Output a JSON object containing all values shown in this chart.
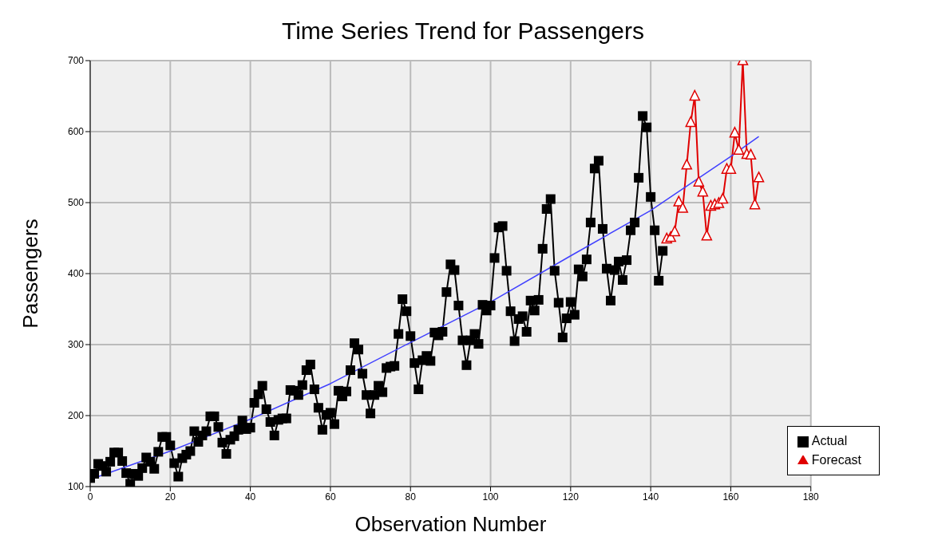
{
  "chart_data": {
    "type": "line",
    "title": "Time Series Trend for Passengers",
    "xlabel": "Observation Number",
    "ylabel": "Passengers",
    "xlim": [
      0,
      180
    ],
    "xticks": [
      0,
      20,
      40,
      60,
      80,
      100,
      120,
      140,
      160,
      180
    ],
    "ylim": [
      100,
      700
    ],
    "yticks": [
      100,
      200,
      300,
      400,
      500,
      600,
      700
    ],
    "grid": true,
    "legend": "bottom right",
    "series": [
      {
        "name": "Actual",
        "color": "#000000",
        "marker": "square",
        "x": [
          0,
          1,
          2,
          3,
          4,
          5,
          6,
          7,
          8,
          9,
          10,
          11,
          12,
          13,
          14,
          15,
          16,
          17,
          18,
          19,
          20,
          21,
          22,
          23,
          24,
          25,
          26,
          27,
          28,
          29,
          30,
          31,
          32,
          33,
          34,
          35,
          36,
          37,
          38,
          39,
          40,
          41,
          42,
          43,
          44,
          45,
          46,
          47,
          48,
          49,
          50,
          51,
          52,
          53,
          54,
          55,
          56,
          57,
          58,
          59,
          60,
          61,
          62,
          63,
          64,
          65,
          66,
          67,
          68,
          69,
          70,
          71,
          72,
          73,
          74,
          75,
          76,
          77,
          78,
          79,
          80,
          81,
          82,
          83,
          84,
          85,
          86,
          87,
          88,
          89,
          90,
          91,
          92,
          93,
          94,
          95,
          96,
          97,
          98,
          99,
          100,
          101,
          102,
          103,
          104,
          105,
          106,
          107,
          108,
          109,
          110,
          111,
          112,
          113,
          114,
          115,
          116,
          117,
          118,
          119,
          120,
          121,
          122,
          123,
          124,
          125,
          126,
          127,
          128,
          129,
          130,
          131,
          132,
          133,
          134,
          135,
          136,
          137,
          138,
          139,
          140,
          141,
          142,
          143
        ],
        "values": [
          112,
          118,
          132,
          129,
          121,
          135,
          148,
          148,
          136,
          119,
          104,
          118,
          115,
          126,
          141,
          135,
          125,
          149,
          170,
          170,
          158,
          133,
          114,
          140,
          145,
          150,
          178,
          163,
          172,
          178,
          199,
          199,
          184,
          162,
          146,
          166,
          171,
          180,
          193,
          181,
          183,
          218,
          230,
          242,
          209,
          191,
          172,
          194,
          196,
          196,
          236,
          235,
          229,
          243,
          264,
          272,
          237,
          211,
          180,
          201,
          204,
          188,
          235,
          227,
          234,
          264,
          302,
          293,
          259,
          229,
          203,
          229,
          242,
          233,
          267,
          269,
          270,
          315,
          364,
          347,
          312,
          274,
          237,
          278,
          284,
          277,
          317,
          313,
          318,
          374,
          413,
          405,
          355,
          306,
          271,
          306,
          315,
          301,
          356,
          348,
          355,
          422,
          465,
          467,
          404,
          347,
          305,
          336,
          340,
          318,
          362,
          348,
          363,
          435,
          491,
          505,
          404,
          359,
          310,
          337,
          360,
          342,
          406,
          396,
          420,
          472,
          548,
          559,
          463,
          407,
          362,
          405,
          417,
          391,
          419,
          461,
          472,
          535,
          622,
          606,
          508,
          461,
          390,
          432
        ]
      },
      {
        "name": "Forecast",
        "color": "#e00000",
        "marker": "triangle",
        "x": [
          144,
          145,
          146,
          147,
          148,
          149,
          150,
          151,
          152,
          153,
          154,
          155,
          156,
          157,
          158,
          159,
          160,
          161,
          162,
          163,
          164,
          165,
          166,
          167
        ],
        "values": [
          449,
          451,
          459,
          501,
          492,
          553,
          613,
          650,
          529,
          515,
          453,
          495,
          497,
          499,
          505,
          547,
          547,
          598,
          574,
          700,
          568,
          567,
          497,
          535
        ]
      },
      {
        "color": "#4040ff",
        "marker": "none",
        "x": [
          0,
          20,
          40,
          60,
          80,
          100,
          120,
          140,
          160,
          167
        ],
        "values": [
          110,
          150,
          195,
          245,
          303,
          360,
          425,
          489,
          565,
          593
        ]
      }
    ]
  }
}
